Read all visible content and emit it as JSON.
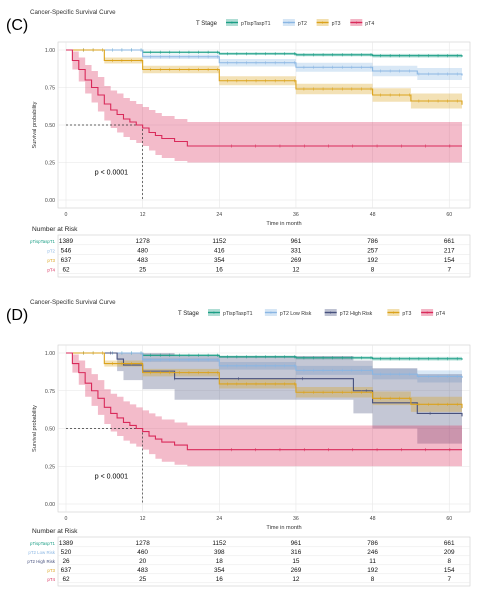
{
  "colors": {
    "pTispTaspT1": "#1a9e85",
    "pT2": "#8ab6e3",
    "pT2low": "#8ab6e3",
    "pT2high": "#46507d",
    "pT3": "#dba21a",
    "pT4": "#d92a5a"
  },
  "chart_data": [
    {
      "type": "line",
      "panel_label": "(C)",
      "title": "Cancer-Specific Survival Curve",
      "legend_title": "T Stage",
      "legend_position": "top",
      "xlabel": "Time in month",
      "ylabel": "Survival probability",
      "xlim": [
        0,
        62
      ],
      "ylim": [
        0,
        1
      ],
      "x_ticks": [
        "0",
        "12",
        "24",
        "36",
        "48",
        "60"
      ],
      "y_ticks": [
        "0.00",
        "0.25",
        "0.50",
        "0.75",
        "1.00"
      ],
      "grid": true,
      "annotation": "p < 0.0001",
      "median_line": {
        "x": 12,
        "y": 0.5
      },
      "series": [
        {
          "name": "pTispTaspT1",
          "color": "pTispTaspT1",
          "x": [
            0,
            12,
            24,
            36,
            48,
            62
          ],
          "y": [
            1.0,
            0.985,
            0.975,
            0.968,
            0.962,
            0.955
          ],
          "lower": [
            1.0,
            0.978,
            0.967,
            0.958,
            0.95,
            0.94
          ],
          "upper": [
            1.0,
            0.992,
            0.983,
            0.978,
            0.974,
            0.968
          ]
        },
        {
          "name": "pT2",
          "color": "pT2",
          "x": [
            0,
            12,
            24,
            36,
            48,
            55,
            62
          ],
          "y": [
            1.0,
            0.955,
            0.915,
            0.885,
            0.86,
            0.84,
            0.83
          ],
          "lower": [
            1.0,
            0.94,
            0.89,
            0.855,
            0.825,
            0.8,
            0.79
          ],
          "upper": [
            1.0,
            0.97,
            0.94,
            0.915,
            0.895,
            0.88,
            0.87
          ]
        },
        {
          "name": "pT3",
          "color": "pT3",
          "x": [
            0,
            6,
            12,
            24,
            36,
            48,
            54,
            62
          ],
          "y": [
            1.0,
            0.93,
            0.87,
            0.795,
            0.74,
            0.7,
            0.66,
            0.635
          ],
          "lower": [
            1.0,
            0.91,
            0.845,
            0.765,
            0.705,
            0.655,
            0.61,
            0.58
          ],
          "upper": [
            1.0,
            0.95,
            0.895,
            0.825,
            0.775,
            0.745,
            0.71,
            0.69
          ]
        },
        {
          "name": "pT4",
          "color": "pT4",
          "x": [
            0,
            1,
            2,
            3,
            4,
            5,
            6,
            7,
            8,
            9,
            10,
            11,
            12,
            13,
            14,
            15,
            17,
            19,
            24,
            62
          ],
          "y": [
            1.0,
            0.93,
            0.87,
            0.8,
            0.75,
            0.7,
            0.64,
            0.6,
            0.57,
            0.54,
            0.52,
            0.5,
            0.48,
            0.45,
            0.43,
            0.41,
            0.39,
            0.36,
            0.36,
            0.36
          ],
          "lower": [
            1.0,
            0.87,
            0.79,
            0.71,
            0.65,
            0.59,
            0.53,
            0.48,
            0.45,
            0.42,
            0.4,
            0.38,
            0.36,
            0.33,
            0.3,
            0.28,
            0.26,
            0.25,
            0.25,
            0.25
          ],
          "upper": [
            1.0,
            0.99,
            0.95,
            0.9,
            0.86,
            0.82,
            0.76,
            0.73,
            0.71,
            0.68,
            0.66,
            0.64,
            0.62,
            0.6,
            0.58,
            0.56,
            0.54,
            0.52,
            0.52,
            0.52
          ]
        }
      ],
      "risk_table": {
        "title": "Number at Risk",
        "times": [
          "0",
          "12",
          "24",
          "36",
          "48",
          "60"
        ],
        "rows": [
          {
            "label": "pTispTaspT1",
            "color": "pTispTaspT1",
            "values": [
              "1389",
              "1278",
              "1152",
              "961",
              "786",
              "661"
            ]
          },
          {
            "label": "pT2",
            "color": "pT2",
            "values": [
              "546",
              "480",
              "416",
              "331",
              "257",
              "217"
            ]
          },
          {
            "label": "pT3",
            "color": "pT3",
            "values": [
              "637",
              "483",
              "354",
              "269",
              "192",
              "154"
            ]
          },
          {
            "label": "pT4",
            "color": "pT4",
            "values": [
              "62",
              "25",
              "16",
              "12",
              "8",
              "7"
            ]
          }
        ]
      }
    },
    {
      "type": "line",
      "panel_label": "(D)",
      "title": "Cancer-Specific Survival Curve",
      "legend_title": "T Stage",
      "legend_position": "top",
      "xlabel": "Time in month",
      "ylabel": "Survival probability",
      "xlim": [
        0,
        62
      ],
      "ylim": [
        0,
        1
      ],
      "x_ticks": [
        "0",
        "12",
        "24",
        "36",
        "48",
        "60"
      ],
      "y_ticks": [
        "0.00",
        "0.25",
        "0.50",
        "0.75",
        "1.00"
      ],
      "grid": true,
      "annotation": "p < 0.0001",
      "median_line": {
        "x": 12,
        "y": 0.5
      },
      "series": [
        {
          "name": "pTispTaspT1",
          "color": "pTispTaspT1",
          "x": [
            0,
            12,
            24,
            36,
            48,
            62
          ],
          "y": [
            1.0,
            0.985,
            0.975,
            0.968,
            0.962,
            0.955
          ],
          "lower": [
            1.0,
            0.978,
            0.967,
            0.958,
            0.95,
            0.94
          ],
          "upper": [
            1.0,
            0.992,
            0.983,
            0.978,
            0.974,
            0.968
          ]
        },
        {
          "name": "pT2 Low Risk",
          "color": "pT2low",
          "x": [
            0,
            12,
            24,
            36,
            48,
            55,
            62
          ],
          "y": [
            1.0,
            0.955,
            0.915,
            0.885,
            0.86,
            0.845,
            0.835
          ],
          "lower": [
            1.0,
            0.94,
            0.89,
            0.855,
            0.825,
            0.805,
            0.795
          ],
          "upper": [
            1.0,
            0.97,
            0.94,
            0.915,
            0.895,
            0.885,
            0.875
          ]
        },
        {
          "name": "pT2 High Risk",
          "color": "pT2high",
          "x": [
            0,
            7,
            8,
            9,
            12,
            17,
            36,
            45,
            48,
            55,
            62
          ],
          "y": [
            1.0,
            1.0,
            0.96,
            0.92,
            0.88,
            0.83,
            0.83,
            0.75,
            0.67,
            0.6,
            0.58
          ],
          "lower": [
            1.0,
            1.0,
            0.88,
            0.82,
            0.76,
            0.69,
            0.69,
            0.6,
            0.5,
            0.4,
            0.38
          ],
          "upper": [
            1.0,
            1.0,
            1.0,
            1.0,
            1.0,
            0.98,
            0.98,
            0.95,
            0.9,
            0.86,
            0.84
          ]
        },
        {
          "name": "pT3",
          "color": "pT3",
          "x": [
            0,
            6,
            12,
            24,
            36,
            48,
            54,
            62
          ],
          "y": [
            1.0,
            0.93,
            0.87,
            0.795,
            0.74,
            0.7,
            0.66,
            0.635
          ],
          "lower": [
            1.0,
            0.91,
            0.845,
            0.765,
            0.705,
            0.655,
            0.61,
            0.58
          ],
          "upper": [
            1.0,
            0.95,
            0.895,
            0.825,
            0.775,
            0.745,
            0.71,
            0.69
          ]
        },
        {
          "name": "pT4",
          "color": "pT4",
          "x": [
            0,
            1,
            2,
            3,
            4,
            5,
            6,
            7,
            8,
            9,
            10,
            11,
            12,
            13,
            14,
            15,
            17,
            19,
            24,
            62
          ],
          "y": [
            1.0,
            0.93,
            0.87,
            0.8,
            0.75,
            0.7,
            0.64,
            0.6,
            0.57,
            0.54,
            0.52,
            0.5,
            0.48,
            0.45,
            0.43,
            0.41,
            0.39,
            0.36,
            0.36,
            0.36
          ],
          "lower": [
            1.0,
            0.87,
            0.79,
            0.71,
            0.65,
            0.59,
            0.53,
            0.48,
            0.45,
            0.42,
            0.4,
            0.38,
            0.36,
            0.33,
            0.3,
            0.28,
            0.26,
            0.25,
            0.25,
            0.25
          ],
          "upper": [
            1.0,
            0.99,
            0.95,
            0.9,
            0.86,
            0.82,
            0.76,
            0.73,
            0.71,
            0.68,
            0.66,
            0.64,
            0.62,
            0.6,
            0.58,
            0.56,
            0.54,
            0.52,
            0.52,
            0.52
          ]
        }
      ],
      "risk_table": {
        "title": "Number at Risk",
        "times": [
          "0",
          "12",
          "24",
          "36",
          "48",
          "60"
        ],
        "rows": [
          {
            "label": "pTispTaspT1",
            "color": "pTispTaspT1",
            "values": [
              "1389",
              "1278",
              "1152",
              "961",
              "786",
              "661"
            ]
          },
          {
            "label": "pT2 Low Risk",
            "color": "pT2low",
            "values": [
              "520",
              "460",
              "398",
              "316",
              "246",
              "209"
            ]
          },
          {
            "label": "pT2 High Risk",
            "color": "pT2high",
            "values": [
              "26",
              "20",
              "18",
              "15",
              "11",
              "8"
            ]
          },
          {
            "label": "pT3",
            "color": "pT3",
            "values": [
              "637",
              "483",
              "354",
              "269",
              "192",
              "154"
            ]
          },
          {
            "label": "pT4",
            "color": "pT4",
            "values": [
              "62",
              "25",
              "16",
              "12",
              "8",
              "7"
            ]
          }
        ]
      }
    }
  ]
}
